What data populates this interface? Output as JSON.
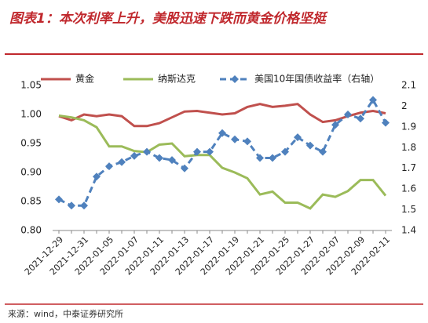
{
  "chart_data": {
    "type": "line",
    "title": "图表1：本次利率上升，美股迅速下跌而黄金价格坚挺",
    "source": "来源：wind，中泰证券研究所",
    "categories": [
      "2021-12-29",
      null,
      "2021-12-31",
      null,
      "2022-01-05",
      null,
      "2022-01-07",
      null,
      "2022-01-11",
      null,
      "2022-01-13",
      null,
      "2022-01-17",
      null,
      "2022-01-19",
      null,
      "2022-01-21",
      null,
      "2022-01-25",
      null,
      "2022-01-27",
      null,
      "2022-02-07",
      null,
      "2022-02-09",
      null,
      "2022-02-11"
    ],
    "series": [
      {
        "name": "黄金",
        "color": "#c0504d",
        "values": [
          0.997,
          0.99,
          1.0,
          0.997,
          1.0,
          0.997,
          0.98,
          0.98,
          0.985,
          0.995,
          1.005,
          1.006,
          1.003,
          1.0,
          1.002,
          1.013,
          1.018,
          1.013,
          1.015,
          1.018,
          1.0,
          0.987,
          0.99,
          0.997,
          1.003,
          1.006,
          1.002
        ]
      },
      {
        "name": "纳斯达克",
        "color": "#9bbb59",
        "values": [
          0.998,
          0.995,
          0.99,
          0.978,
          0.945,
          0.945,
          0.937,
          0.935,
          0.948,
          0.95,
          0.928,
          0.93,
          0.93,
          0.908,
          0.9,
          0.89,
          0.862,
          0.867,
          0.848,
          0.848,
          0.838,
          0.862,
          0.858,
          0.868,
          0.887,
          0.887,
          0.86
        ]
      },
      {
        "name": "美国10年国债收益率（右轴）",
        "color": "#4f81bd",
        "axis": "y2",
        "dashed": true,
        "markers": "diamond",
        "values": [
          1.55,
          1.52,
          1.52,
          1.66,
          1.71,
          1.73,
          1.76,
          1.78,
          1.75,
          1.74,
          1.7,
          1.78,
          1.78,
          1.87,
          1.84,
          1.83,
          1.75,
          1.75,
          1.78,
          1.85,
          1.81,
          1.78,
          1.91,
          1.96,
          1.94,
          2.03,
          1.92
        ]
      }
    ],
    "ylim": [
      0.8,
      1.05
    ],
    "yticks": [
      {
        "value": 0.8,
        "label": "0.80"
      },
      0.85,
      {
        "value": 0.9,
        "label": "0.90"
      },
      0.95,
      {
        "value": 1.0,
        "label": "1.00"
      },
      1.05
    ],
    "y2lim": [
      1.4,
      2.1
    ],
    "y2ticks": [
      1.4,
      1.5,
      1.6,
      1.7,
      1.8,
      1.9,
      2,
      2.1
    ],
    "legend": "top"
  }
}
